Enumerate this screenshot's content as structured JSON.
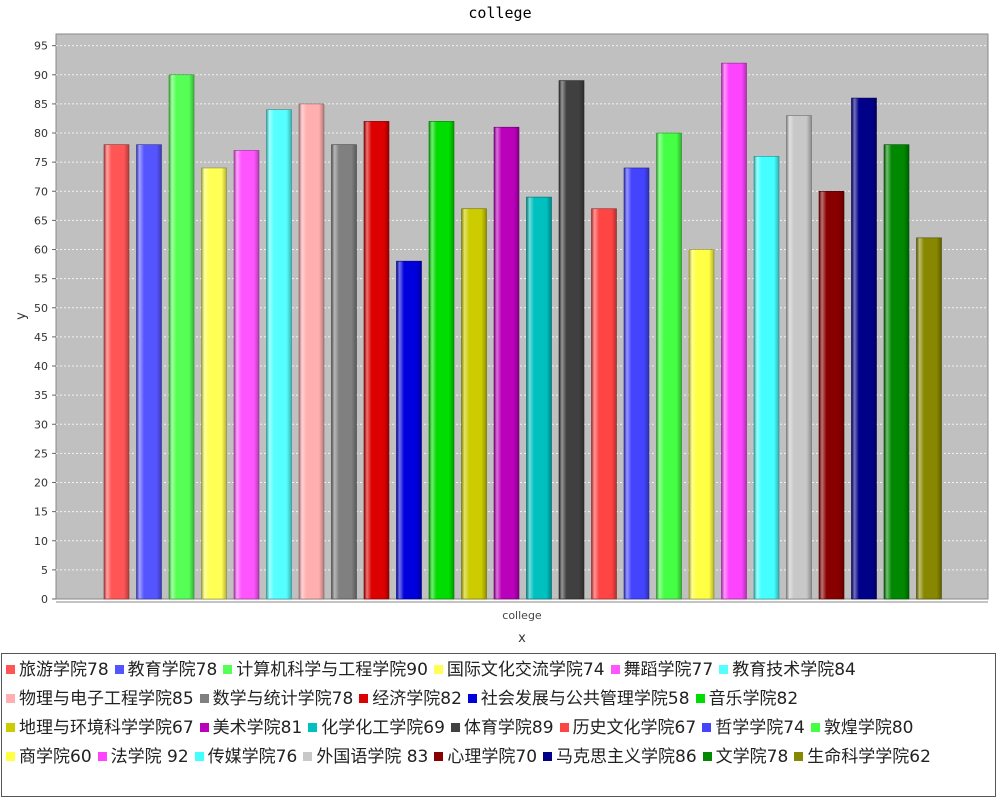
{
  "chart_data": {
    "type": "bar",
    "title": "college",
    "xlabel": "x",
    "ylabel": "y",
    "category": "college",
    "ylim": [
      0,
      97
    ],
    "ytick_step": 5,
    "grid": true,
    "legend_position": "bottom",
    "series": [
      {
        "name": "旅游学院78",
        "value": 78,
        "color": "#ff5555"
      },
      {
        "name": "教育学院78",
        "value": 78,
        "color": "#5555ff"
      },
      {
        "name": "计算机科学与工程学院90",
        "value": 90,
        "color": "#55ff55"
      },
      {
        "name": "国际文化交流学院74",
        "value": 74,
        "color": "#ffff55"
      },
      {
        "name": "舞蹈学院77",
        "value": 77,
        "color": "#ff55ff"
      },
      {
        "name": "教育技术学院84",
        "value": 84,
        "color": "#55ffff"
      },
      {
        "name": "物理与电子工程学院85",
        "value": 85,
        "color": "#ffafaf"
      },
      {
        "name": "数学与统计学院78",
        "value": 78,
        "color": "#808080"
      },
      {
        "name": "经济学院82",
        "value": 82,
        "color": "#dd0000"
      },
      {
        "name": "社会发展与公共管理学院58",
        "value": 58,
        "color": "#0000dd"
      },
      {
        "name": "音乐学院82",
        "value": 82,
        "color": "#00dd00"
      },
      {
        "name": "地理与环境科学学院67",
        "value": 67,
        "color": "#cccc00"
      },
      {
        "name": "美术学院81",
        "value": 81,
        "color": "#bb00bb"
      },
      {
        "name": "化学化工学院69",
        "value": 69,
        "color": "#00c0c0"
      },
      {
        "name": "体育学院89",
        "value": 89,
        "color": "#404040"
      },
      {
        "name": "历史文化学院67",
        "value": 67,
        "color": "#ff4444"
      },
      {
        "name": "哲学学院74",
        "value": 74,
        "color": "#4444ff"
      },
      {
        "name": "敦煌学院80",
        "value": 80,
        "color": "#44ff44"
      },
      {
        "name": "商学院60",
        "value": 60,
        "color": "#ffff44"
      },
      {
        "name": "法学院 92",
        "value": 92,
        "color": "#ff44ff"
      },
      {
        "name": "传媒学院76",
        "value": 76,
        "color": "#44ffff"
      },
      {
        "name": "外国语学院 83",
        "value": 83,
        "color": "#c8c8c8"
      },
      {
        "name": "心理学院70",
        "value": 70,
        "color": "#880000"
      },
      {
        "name": "马克思主义学院86",
        "value": 86,
        "color": "#000088"
      },
      {
        "name": "文学院78",
        "value": 78,
        "color": "#008800"
      },
      {
        "name": "生命科学学院62",
        "value": 62,
        "color": "#888800"
      }
    ]
  }
}
